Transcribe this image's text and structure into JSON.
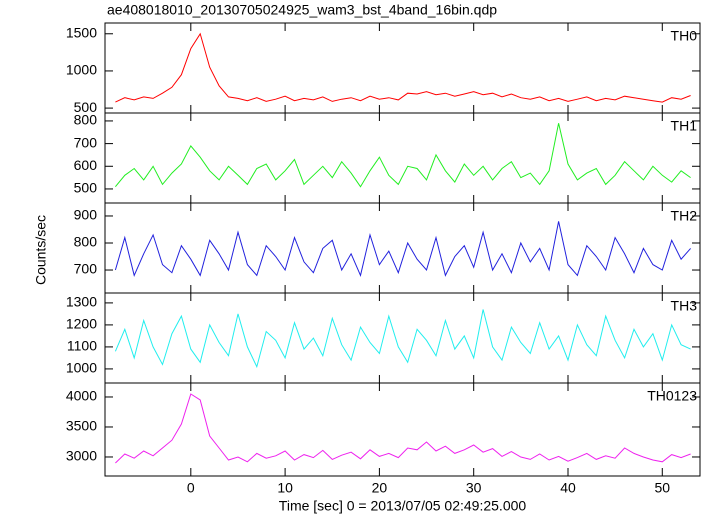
{
  "chart_data": [
    {
      "type": "line",
      "title": "ae408018010_20130705024925_wam3_bst_4band_16bin.qdp",
      "label": "TH0",
      "color": "#ff0000",
      "x": [
        -8,
        -7,
        -6,
        -5,
        -4,
        -3,
        -2,
        -1,
        0,
        1,
        2,
        3,
        4,
        5,
        6,
        7,
        8,
        9,
        10,
        11,
        12,
        13,
        14,
        15,
        16,
        17,
        18,
        19,
        20,
        21,
        22,
        23,
        24,
        25,
        26,
        27,
        28,
        29,
        30,
        31,
        32,
        33,
        34,
        35,
        36,
        37,
        38,
        39,
        40,
        41,
        42,
        43,
        44,
        45,
        46,
        47,
        48,
        49,
        50,
        51,
        52,
        53
      ],
      "values": [
        580,
        640,
        610,
        650,
        630,
        700,
        780,
        950,
        1300,
        1500,
        1050,
        800,
        650,
        630,
        600,
        640,
        590,
        620,
        660,
        600,
        630,
        610,
        650,
        590,
        620,
        640,
        600,
        660,
        620,
        640,
        610,
        700,
        690,
        720,
        680,
        700,
        660,
        690,
        720,
        680,
        700,
        650,
        690,
        640,
        620,
        650,
        600,
        630,
        590,
        620,
        650,
        600,
        630,
        610,
        660,
        640,
        620,
        600,
        580,
        640,
        620,
        670
      ],
      "xlim": [
        -9.1,
        54.0
      ],
      "ylim": [
        434,
        1645
      ],
      "xticks": [
        0,
        10,
        20,
        30,
        40,
        50
      ],
      "yticks": [
        500,
        1000,
        1500
      ]
    },
    {
      "type": "line",
      "label": "TH1",
      "color": "#22ee22",
      "x": [
        -8,
        -7,
        -6,
        -5,
        -4,
        -3,
        -2,
        -1,
        0,
        1,
        2,
        3,
        4,
        5,
        6,
        7,
        8,
        9,
        10,
        11,
        12,
        13,
        14,
        15,
        16,
        17,
        18,
        19,
        20,
        21,
        22,
        23,
        24,
        25,
        26,
        27,
        28,
        29,
        30,
        31,
        32,
        33,
        34,
        35,
        36,
        37,
        38,
        39,
        40,
        41,
        42,
        43,
        44,
        45,
        46,
        47,
        48,
        49,
        50,
        51,
        52,
        53
      ],
      "values": [
        510,
        560,
        590,
        540,
        600,
        520,
        570,
        610,
        690,
        640,
        580,
        540,
        600,
        560,
        520,
        590,
        610,
        540,
        580,
        630,
        520,
        560,
        600,
        550,
        620,
        570,
        510,
        580,
        640,
        560,
        520,
        600,
        590,
        540,
        650,
        580,
        530,
        610,
        560,
        600,
        540,
        590,
        620,
        550,
        570,
        520,
        580,
        790,
        610,
        540,
        570,
        590,
        520,
        560,
        620,
        580,
        540,
        600,
        560,
        530,
        580,
        550
      ],
      "xlim": [
        -9.1,
        54.0
      ],
      "ylim": [
        438,
        835
      ],
      "xticks": [
        0,
        10,
        20,
        30,
        40,
        50
      ],
      "yticks": [
        500,
        600,
        700,
        800
      ]
    },
    {
      "type": "line",
      "ylabel": "Counts/sec",
      "label": "TH2",
      "color": "#2222dd",
      "x": [
        -8,
        -7,
        -6,
        -5,
        -4,
        -3,
        -2,
        -1,
        0,
        1,
        2,
        3,
        4,
        5,
        6,
        7,
        8,
        9,
        10,
        11,
        12,
        13,
        14,
        15,
        16,
        17,
        18,
        19,
        20,
        21,
        22,
        23,
        24,
        25,
        26,
        27,
        28,
        29,
        30,
        31,
        32,
        33,
        34,
        35,
        36,
        37,
        38,
        39,
        40,
        41,
        42,
        43,
        44,
        45,
        46,
        47,
        48,
        49,
        50,
        51,
        52,
        53
      ],
      "values": [
        700,
        820,
        680,
        760,
        830,
        720,
        690,
        790,
        740,
        680,
        810,
        760,
        700,
        840,
        720,
        680,
        790,
        750,
        700,
        820,
        730,
        690,
        780,
        810,
        700,
        760,
        680,
        830,
        720,
        770,
        690,
        800,
        740,
        700,
        820,
        680,
        750,
        790,
        710,
        840,
        700,
        760,
        690,
        800,
        730,
        780,
        700,
        880,
        720,
        680,
        790,
        750,
        700,
        820,
        760,
        690,
        780,
        720,
        700,
        810,
        740,
        780
      ],
      "xlim": [
        -9.1,
        54.0
      ],
      "ylim": [
        615,
        948
      ],
      "xticks": [
        0,
        10,
        20,
        30,
        40,
        50
      ],
      "yticks": [
        700,
        800,
        900
      ]
    },
    {
      "type": "line",
      "label": "TH3",
      "color": "#22eeee",
      "x": [
        -8,
        -7,
        -6,
        -5,
        -4,
        -3,
        -2,
        -1,
        0,
        1,
        2,
        3,
        4,
        5,
        6,
        7,
        8,
        9,
        10,
        11,
        12,
        13,
        14,
        15,
        16,
        17,
        18,
        19,
        20,
        21,
        22,
        23,
        24,
        25,
        26,
        27,
        28,
        29,
        30,
        31,
        32,
        33,
        34,
        35,
        36,
        37,
        38,
        39,
        40,
        41,
        42,
        43,
        44,
        45,
        46,
        47,
        48,
        49,
        50,
        51,
        52,
        53
      ],
      "values": [
        1080,
        1180,
        1050,
        1220,
        1100,
        1020,
        1160,
        1240,
        1090,
        1030,
        1200,
        1120,
        1060,
        1250,
        1100,
        1010,
        1170,
        1130,
        1050,
        1210,
        1090,
        1140,
        1060,
        1230,
        1110,
        1040,
        1190,
        1120,
        1070,
        1240,
        1100,
        1030,
        1180,
        1130,
        1060,
        1220,
        1090,
        1150,
        1050,
        1270,
        1100,
        1040,
        1190,
        1120,
        1070,
        1210,
        1090,
        1150,
        1040,
        1200,
        1110,
        1060,
        1240,
        1130,
        1050,
        1180,
        1100,
        1160,
        1040,
        1200,
        1110,
        1090
      ],
      "xlim": [
        -9.1,
        54.0
      ],
      "ylim": [
        936,
        1345
      ],
      "xticks": [
        0,
        10,
        20,
        30,
        40,
        50
      ],
      "yticks": [
        1000,
        1100,
        1200,
        1300
      ]
    },
    {
      "type": "line",
      "xlabel": "Time [sec] 0 = 2013/07/05 02:49:25.000",
      "label": "TH0123",
      "color": "#ee22ee",
      "x": [
        -8,
        -7,
        -6,
        -5,
        -4,
        -3,
        -2,
        -1,
        0,
        1,
        2,
        3,
        4,
        5,
        6,
        7,
        8,
        9,
        10,
        11,
        12,
        13,
        14,
        15,
        16,
        17,
        18,
        19,
        20,
        21,
        22,
        23,
        24,
        25,
        26,
        27,
        28,
        29,
        30,
        31,
        32,
        33,
        34,
        35,
        36,
        37,
        38,
        39,
        40,
        41,
        42,
        43,
        44,
        45,
        46,
        47,
        48,
        49,
        50,
        51,
        52,
        53
      ],
      "values": [
        2900,
        3050,
        2980,
        3100,
        3020,
        3150,
        3280,
        3550,
        4050,
        3950,
        3350,
        3150,
        2950,
        3000,
        2920,
        3060,
        2980,
        3020,
        3100,
        2950,
        3040,
        2990,
        3110,
        2960,
        3030,
        3080,
        2970,
        3120,
        3010,
        3060,
        2990,
        3150,
        3120,
        3250,
        3100,
        3180,
        3060,
        3120,
        3200,
        3080,
        3140,
        3010,
        3090,
        3000,
        2960,
        3050,
        2950,
        3010,
        2930,
        2990,
        3060,
        2960,
        3020,
        2980,
        3150,
        3060,
        3000,
        2950,
        2920,
        3040,
        2990,
        3050
      ],
      "xlim": [
        -9.1,
        54.0
      ],
      "ylim": [
        2683,
        4233
      ],
      "xticks": [
        0,
        10,
        20,
        30,
        40,
        50
      ],
      "yticks": [
        3000,
        3500,
        4000
      ]
    }
  ]
}
